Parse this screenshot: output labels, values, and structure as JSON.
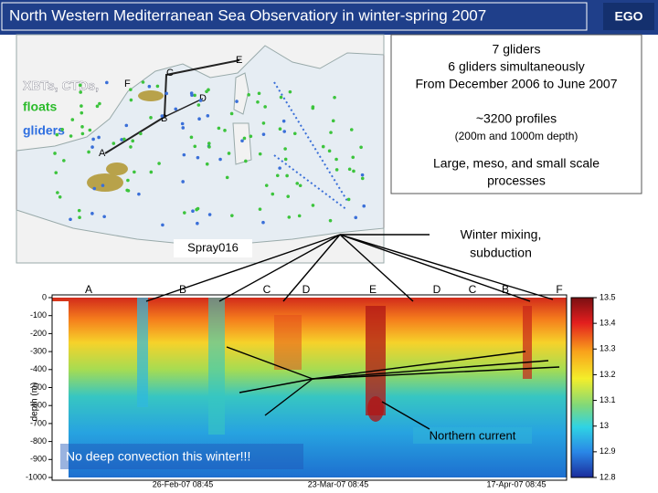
{
  "header": {
    "title": "North Western Mediterranean Sea Observatiory in winter-spring 2007",
    "logo": "EGO"
  },
  "map": {
    "legend": [
      "XBTs, CTDs,",
      "floats",
      "gliders"
    ],
    "points": [
      "A",
      "B",
      "C",
      "D",
      "E",
      "F"
    ],
    "label": "Spray016"
  },
  "info_box": {
    "lines": [
      "7 gliders",
      "6 gliders simultaneously",
      "From December 2006 to June 2007"
    ],
    "profiles": "~3200 profiles",
    "depths": "(200m and 1000m depth)",
    "scales": [
      "Large, meso, and small scale",
      "processes"
    ]
  },
  "annotations": {
    "mixing": [
      "Winter mixing,",
      "subduction"
    ],
    "current": "Northern current",
    "convection": "No deep convection this winter!!!"
  },
  "section": {
    "points": [
      "A",
      "B",
      "C",
      "D",
      "E",
      "D",
      "C",
      "B",
      "F"
    ],
    "y_label": "depth (m)",
    "yticks": [
      0,
      -100,
      -200,
      -300,
      -400,
      -500,
      -600,
      -700,
      -800,
      -900,
      -1000
    ],
    "xticks": [
      "26-Feb-07 08:45",
      "23-Mar-07 08:45",
      "17-Apr-07 08:45"
    ],
    "colorbar_ticks": [
      13.5,
      13.4,
      13.3,
      13.2,
      13.1,
      13,
      12.9,
      12.8
    ]
  }
}
